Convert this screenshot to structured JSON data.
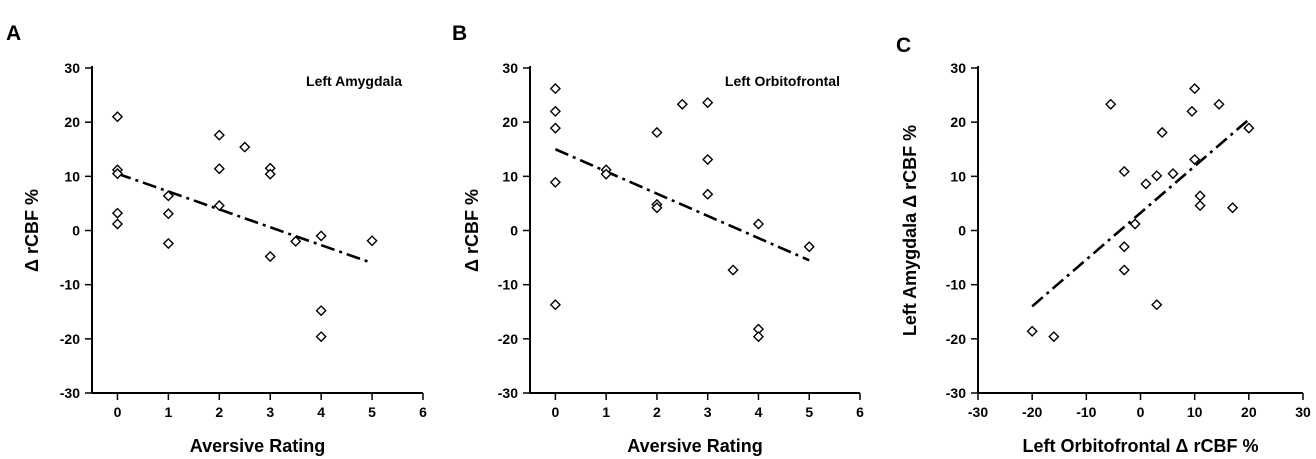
{
  "chart_data": [
    {
      "type": "scatter",
      "panel_label": "A",
      "annotation": "Left Amygdala",
      "xlabel": "Aversive Rating",
      "ylabel": "Δ rCBF %",
      "xlim": [
        -0.5,
        6
      ],
      "ylim": [
        -30,
        30
      ],
      "xticks": [
        0,
        1,
        2,
        3,
        4,
        5,
        6
      ],
      "yticks": [
        -30,
        -20,
        -10,
        0,
        10,
        20,
        30
      ],
      "tick_labels_x": [
        "0",
        "1",
        "2",
        "3",
        "4",
        "5",
        "6"
      ],
      "tick_labels_y": [
        "-30",
        "-20",
        "-10",
        "0",
        "10",
        "20",
        "30"
      ],
      "grid": false,
      "points": [
        {
          "x": 0,
          "y": 21
        },
        {
          "x": 0,
          "y": 11.2
        },
        {
          "x": 0,
          "y": 10.5
        },
        {
          "x": 0,
          "y": 3.2
        },
        {
          "x": 0,
          "y": 1.2
        },
        {
          "x": 1,
          "y": 6.4
        },
        {
          "x": 1,
          "y": 3.1
        },
        {
          "x": 1,
          "y": -2.4
        },
        {
          "x": 2,
          "y": 17.6
        },
        {
          "x": 2,
          "y": 11.4
        },
        {
          "x": 2,
          "y": 4.6
        },
        {
          "x": 2.5,
          "y": 15.4
        },
        {
          "x": 3,
          "y": 11.5
        },
        {
          "x": 3,
          "y": 10.4
        },
        {
          "x": 3,
          "y": -4.8
        },
        {
          "x": 3.5,
          "y": -2
        },
        {
          "x": 4,
          "y": -1
        },
        {
          "x": 4,
          "y": -14.8
        },
        {
          "x": 4,
          "y": -19.6
        },
        {
          "x": 5,
          "y": -1.9
        }
      ],
      "trendline": {
        "x": [
          0,
          5
        ],
        "y": [
          10.5,
          -6
        ]
      }
    },
    {
      "type": "scatter",
      "panel_label": "B",
      "annotation": "Left Orbitofrontal",
      "xlabel": "Aversive Rating",
      "ylabel": "Δ rCBF %",
      "xlim": [
        -0.5,
        6
      ],
      "ylim": [
        -30,
        30
      ],
      "xticks": [
        0,
        1,
        2,
        3,
        4,
        5,
        6
      ],
      "yticks": [
        -30,
        -20,
        -10,
        0,
        10,
        20,
        30
      ],
      "tick_labels_x": [
        "0",
        "1",
        "2",
        "3",
        "4",
        "5",
        "6"
      ],
      "tick_labels_y": [
        "-30",
        "-20",
        "-10",
        "0",
        "10",
        "20",
        "30"
      ],
      "grid": false,
      "points": [
        {
          "x": 0,
          "y": 26.2
        },
        {
          "x": 0,
          "y": 22
        },
        {
          "x": 0,
          "y": 18.9
        },
        {
          "x": 0,
          "y": 8.9
        },
        {
          "x": 0,
          "y": -13.7
        },
        {
          "x": 1,
          "y": 11.2
        },
        {
          "x": 1,
          "y": 10.4
        },
        {
          "x": 2,
          "y": 18.1
        },
        {
          "x": 2,
          "y": 4.8
        },
        {
          "x": 2,
          "y": 4.2
        },
        {
          "x": 2.5,
          "y": 23.3
        },
        {
          "x": 3,
          "y": 23.6
        },
        {
          "x": 3,
          "y": 13.1
        },
        {
          "x": 3,
          "y": 6.7
        },
        {
          "x": 3.5,
          "y": -7.3
        },
        {
          "x": 4,
          "y": 1.2
        },
        {
          "x": 4,
          "y": -18.2
        },
        {
          "x": 4,
          "y": -19.6
        },
        {
          "x": 5,
          "y": -3
        }
      ],
      "trendline": {
        "x": [
          0,
          5
        ],
        "y": [
          15,
          -5.5
        ]
      }
    },
    {
      "type": "scatter",
      "panel_label": "C",
      "xlabel": "Left Orbitofrontal Δ rCBF %",
      "ylabel": "Left Amygdala Δ rCBF %",
      "xlim": [
        -30,
        30
      ],
      "ylim": [
        -30,
        30
      ],
      "xticks": [
        -30,
        -20,
        -10,
        0,
        10,
        20,
        30
      ],
      "yticks": [
        -30,
        -20,
        -10,
        0,
        10,
        20,
        30
      ],
      "tick_labels_x": [
        "-30",
        "-20",
        "-10",
        "0",
        "10",
        "20",
        "30"
      ],
      "tick_labels_y": [
        "-30",
        "-20",
        "-10",
        "0",
        "10",
        "20",
        "30"
      ],
      "grid": false,
      "points": [
        {
          "x": -20,
          "y": -18.6
        },
        {
          "x": -16,
          "y": -19.6
        },
        {
          "x": -5.5,
          "y": 23.3
        },
        {
          "x": -3,
          "y": 10.9
        },
        {
          "x": -3,
          "y": -3
        },
        {
          "x": -3,
          "y": -7.3
        },
        {
          "x": -1,
          "y": 1.2
        },
        {
          "x": 1,
          "y": 8.6
        },
        {
          "x": 3,
          "y": 10.1
        },
        {
          "x": 3,
          "y": -13.7
        },
        {
          "x": 4,
          "y": 18.1
        },
        {
          "x": 6,
          "y": 10.5
        },
        {
          "x": 9.5,
          "y": 22
        },
        {
          "x": 10,
          "y": 26.2
        },
        {
          "x": 10,
          "y": 13.1
        },
        {
          "x": 11,
          "y": 6.4
        },
        {
          "x": 11,
          "y": 4.6
        },
        {
          "x": 14.5,
          "y": 23.3
        },
        {
          "x": 17,
          "y": 4.2
        },
        {
          "x": 20,
          "y": 18.9
        }
      ],
      "trendline": {
        "x": [
          -20,
          20
        ],
        "y": [
          -14,
          20.5
        ]
      }
    }
  ]
}
